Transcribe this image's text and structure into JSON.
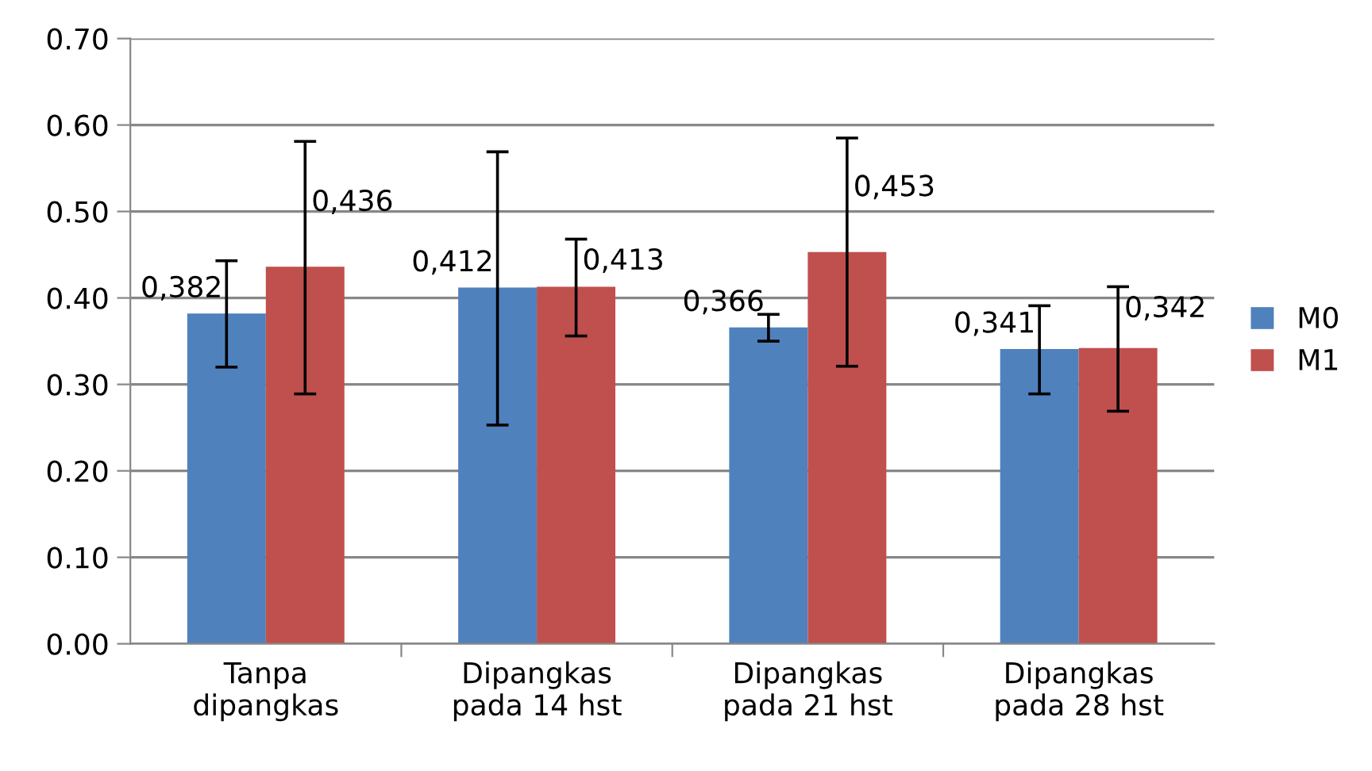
{
  "chart_data": {
    "type": "bar",
    "categories": [
      "Tanpa\ndipangkas",
      "Dipangkas\npada 14 hst",
      "Dipangkas\npada 21 hst",
      "Dipangkas\npada 28 hst"
    ],
    "series": [
      {
        "name": "M0",
        "color": "#4f81bd",
        "values": [
          0.382,
          0.412,
          0.366,
          0.341
        ],
        "value_labels": [
          "0,382",
          "0,412",
          "0,366",
          "0,341"
        ],
        "errors": [
          [
            0.32,
            0.443
          ],
          [
            0.253,
            0.569
          ],
          [
            0.35,
            0.381
          ],
          [
            0.289,
            0.391
          ]
        ]
      },
      {
        "name": "M1",
        "color": "#c0504d",
        "values": [
          0.436,
          0.413,
          0.453,
          0.342
        ],
        "value_labels": [
          "0,436",
          "0,413",
          "0,453",
          "0,342"
        ],
        "errors": [
          [
            0.289,
            0.581
          ],
          [
            0.356,
            0.468
          ],
          [
            0.321,
            0.585
          ],
          [
            0.269,
            0.413
          ]
        ]
      }
    ],
    "ylim": [
      0,
      0.7
    ],
    "yticks": [
      {
        "value": 0,
        "label": "0.00"
      },
      {
        "value": 0.1,
        "label": "0.10"
      },
      {
        "value": 0.2,
        "label": "0.20"
      },
      {
        "value": 0.3,
        "label": "0.30"
      },
      {
        "value": 0.4,
        "label": "0.40"
      },
      {
        "value": 0.5,
        "label": "0.50"
      },
      {
        "value": 0.6,
        "label": "0.60"
      },
      {
        "value": 0.7,
        "label": "0.70"
      }
    ],
    "grid": "y",
    "legend": "right"
  }
}
